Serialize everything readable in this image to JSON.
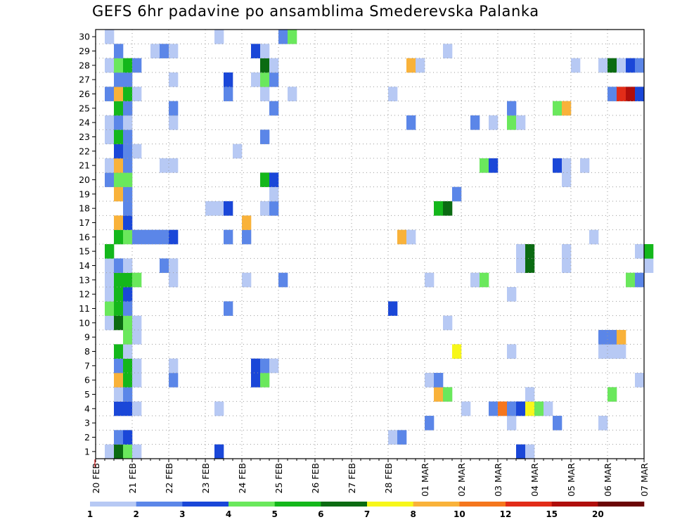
{
  "chart_data": {
    "type": "heatmap",
    "title": "GEFS 6hr padavine po ansamblima Smederevska Palanka",
    "xlabel": "",
    "ylabel": "",
    "x_tick_labels": [
      "20 FEB",
      "21 FEB",
      "22 FEB",
      "23 FEB",
      "24 FEB",
      "25 FEB",
      "26 FEB",
      "27 FEB",
      "28 FEB",
      "01 MAR",
      "02 MAR",
      "03 MAR",
      "04 MAR",
      "05 MAR",
      "06 MAR",
      "07 MAR"
    ],
    "x_range_steps": [
      0,
      60
    ],
    "y_tick_labels": [
      "1",
      "2",
      "3",
      "4",
      "5",
      "6",
      "7",
      "8",
      "9",
      "10",
      "11",
      "12",
      "13",
      "14",
      "15",
      "16",
      "17",
      "18",
      "19",
      "20",
      "21",
      "22",
      "23",
      "24",
      "25",
      "26",
      "27",
      "28",
      "29",
      "30"
    ],
    "y_range": [
      0.5,
      30.5
    ],
    "grid": true,
    "colorbar": {
      "labels": [
        "1",
        "2",
        "3",
        "4",
        "5",
        "6",
        "7",
        "8",
        "10",
        "12",
        "15",
        "20"
      ],
      "colors": [
        "#b7c9f4",
        "#5b86e8",
        "#1a47d8",
        "#6ae85c",
        "#14b71b",
        "#0b6b12",
        "#f7f71a",
        "#f9b23a",
        "#f5761d",
        "#e22c18",
        "#b00e0b",
        "#6b0606"
      ]
    },
    "cells": [
      {
        "member": 1,
        "step": 1,
        "cls": 0
      },
      {
        "member": 1,
        "step": 2,
        "cls": 5
      },
      {
        "member": 1,
        "step": 3,
        "cls": 3
      },
      {
        "member": 1,
        "step": 4,
        "cls": 0
      },
      {
        "member": 1,
        "step": 13,
        "cls": 2
      },
      {
        "member": 1,
        "step": 46,
        "cls": 2
      },
      {
        "member": 1,
        "step": 47,
        "cls": 0
      },
      {
        "member": 2,
        "step": 2,
        "cls": 1
      },
      {
        "member": 2,
        "step": 3,
        "cls": 2
      },
      {
        "member": 2,
        "step": 32,
        "cls": 0
      },
      {
        "member": 2,
        "step": 33,
        "cls": 1
      },
      {
        "member": 3,
        "step": 36,
        "cls": 1
      },
      {
        "member": 3,
        "step": 45,
        "cls": 0
      },
      {
        "member": 3,
        "step": 50,
        "cls": 1
      },
      {
        "member": 3,
        "step": 55,
        "cls": 0
      },
      {
        "member": 4,
        "step": 2,
        "cls": 2
      },
      {
        "member": 4,
        "step": 3,
        "cls": 2
      },
      {
        "member": 4,
        "step": 4,
        "cls": 0
      },
      {
        "member": 4,
        "step": 13,
        "cls": 0
      },
      {
        "member": 4,
        "step": 40,
        "cls": 0
      },
      {
        "member": 4,
        "step": 43,
        "cls": 1
      },
      {
        "member": 4,
        "step": 44,
        "cls": 8
      },
      {
        "member": 4,
        "step": 45,
        "cls": 1
      },
      {
        "member": 4,
        "step": 46,
        "cls": 2
      },
      {
        "member": 4,
        "step": 47,
        "cls": 6
      },
      {
        "member": 4,
        "step": 48,
        "cls": 3
      },
      {
        "member": 4,
        "step": 49,
        "cls": 0
      },
      {
        "member": 5,
        "step": 2,
        "cls": 0
      },
      {
        "member": 5,
        "step": 3,
        "cls": 1
      },
      {
        "member": 5,
        "step": 37,
        "cls": 7
      },
      {
        "member": 5,
        "step": 38,
        "cls": 3
      },
      {
        "member": 5,
        "step": 47,
        "cls": 0
      },
      {
        "member": 5,
        "step": 56,
        "cls": 3
      },
      {
        "member": 6,
        "step": 2,
        "cls": 7
      },
      {
        "member": 6,
        "step": 3,
        "cls": 4
      },
      {
        "member": 6,
        "step": 4,
        "cls": 0
      },
      {
        "member": 6,
        "step": 8,
        "cls": 1
      },
      {
        "member": 6,
        "step": 17,
        "cls": 2
      },
      {
        "member": 6,
        "step": 18,
        "cls": 3
      },
      {
        "member": 6,
        "step": 36,
        "cls": 0
      },
      {
        "member": 6,
        "step": 37,
        "cls": 1
      },
      {
        "member": 6,
        "step": 59,
        "cls": 0
      },
      {
        "member": 7,
        "step": 2,
        "cls": 1
      },
      {
        "member": 7,
        "step": 3,
        "cls": 4
      },
      {
        "member": 7,
        "step": 4,
        "cls": 0
      },
      {
        "member": 7,
        "step": 8,
        "cls": 0
      },
      {
        "member": 7,
        "step": 17,
        "cls": 2
      },
      {
        "member": 7,
        "step": 18,
        "cls": 1
      },
      {
        "member": 7,
        "step": 19,
        "cls": 0
      },
      {
        "member": 8,
        "step": 2,
        "cls": 4
      },
      {
        "member": 8,
        "step": 3,
        "cls": 0
      },
      {
        "member": 8,
        "step": 39,
        "cls": 6
      },
      {
        "member": 8,
        "step": 45,
        "cls": 0
      },
      {
        "member": 8,
        "step": 55,
        "cls": 0
      },
      {
        "member": 8,
        "step": 56,
        "cls": 0
      },
      {
        "member": 8,
        "step": 57,
        "cls": 0
      },
      {
        "member": 9,
        "step": 3,
        "cls": 3
      },
      {
        "member": 9,
        "step": 4,
        "cls": 0
      },
      {
        "member": 9,
        "step": 55,
        "cls": 1
      },
      {
        "member": 9,
        "step": 56,
        "cls": 1
      },
      {
        "member": 9,
        "step": 57,
        "cls": 7
      },
      {
        "member": 10,
        "step": 1,
        "cls": 0
      },
      {
        "member": 10,
        "step": 2,
        "cls": 5
      },
      {
        "member": 10,
        "step": 3,
        "cls": 3
      },
      {
        "member": 10,
        "step": 4,
        "cls": 0
      },
      {
        "member": 10,
        "step": 38,
        "cls": 0
      },
      {
        "member": 11,
        "step": 1,
        "cls": 3
      },
      {
        "member": 11,
        "step": 2,
        "cls": 4
      },
      {
        "member": 11,
        "step": 3,
        "cls": 1
      },
      {
        "member": 11,
        "step": 14,
        "cls": 1
      },
      {
        "member": 11,
        "step": 32,
        "cls": 2
      },
      {
        "member": 12,
        "step": 1,
        "cls": 0
      },
      {
        "member": 12,
        "step": 2,
        "cls": 4
      },
      {
        "member": 12,
        "step": 3,
        "cls": 2
      },
      {
        "member": 12,
        "step": 45,
        "cls": 0
      },
      {
        "member": 13,
        "step": 1,
        "cls": 0
      },
      {
        "member": 13,
        "step": 2,
        "cls": 4
      },
      {
        "member": 13,
        "step": 3,
        "cls": 4
      },
      {
        "member": 13,
        "step": 4,
        "cls": 3
      },
      {
        "member": 13,
        "step": 8,
        "cls": 0
      },
      {
        "member": 13,
        "step": 16,
        "cls": 0
      },
      {
        "member": 13,
        "step": 20,
        "cls": 1
      },
      {
        "member": 13,
        "step": 36,
        "cls": 0
      },
      {
        "member": 13,
        "step": 41,
        "cls": 0
      },
      {
        "member": 13,
        "step": 42,
        "cls": 3
      },
      {
        "member": 13,
        "step": 58,
        "cls": 3
      },
      {
        "member": 13,
        "step": 59,
        "cls": 1
      },
      {
        "member": 14,
        "step": 1,
        "cls": 0
      },
      {
        "member": 14,
        "step": 2,
        "cls": 1
      },
      {
        "member": 14,
        "step": 3,
        "cls": 0
      },
      {
        "member": 14,
        "step": 7,
        "cls": 1
      },
      {
        "member": 14,
        "step": 8,
        "cls": 0
      },
      {
        "member": 14,
        "step": 46,
        "cls": 0
      },
      {
        "member": 14,
        "step": 47,
        "cls": 5
      },
      {
        "member": 14,
        "step": 51,
        "cls": 0
      },
      {
        "member": 14,
        "step": 60,
        "cls": 0
      },
      {
        "member": 15,
        "step": 1,
        "cls": 4
      },
      {
        "member": 15,
        "step": 46,
        "cls": 0
      },
      {
        "member": 15,
        "step": 47,
        "cls": 5
      },
      {
        "member": 15,
        "step": 51,
        "cls": 0
      },
      {
        "member": 15,
        "step": 59,
        "cls": 0
      },
      {
        "member": 15,
        "step": 60,
        "cls": 4
      },
      {
        "member": 16,
        "step": 2,
        "cls": 4
      },
      {
        "member": 16,
        "step": 3,
        "cls": 3
      },
      {
        "member": 16,
        "step": 4,
        "cls": 1
      },
      {
        "member": 16,
        "step": 5,
        "cls": 1
      },
      {
        "member": 16,
        "step": 6,
        "cls": 1
      },
      {
        "member": 16,
        "step": 7,
        "cls": 1
      },
      {
        "member": 16,
        "step": 8,
        "cls": 2
      },
      {
        "member": 16,
        "step": 14,
        "cls": 1
      },
      {
        "member": 16,
        "step": 16,
        "cls": 1
      },
      {
        "member": 16,
        "step": 33,
        "cls": 7
      },
      {
        "member": 16,
        "step": 34,
        "cls": 0
      },
      {
        "member": 16,
        "step": 54,
        "cls": 0
      },
      {
        "member": 17,
        "step": 2,
        "cls": 7
      },
      {
        "member": 17,
        "step": 3,
        "cls": 2
      },
      {
        "member": 17,
        "step": 16,
        "cls": 7
      },
      {
        "member": 18,
        "step": 3,
        "cls": 1
      },
      {
        "member": 18,
        "step": 12,
        "cls": 0
      },
      {
        "member": 18,
        "step": 13,
        "cls": 0
      },
      {
        "member": 18,
        "step": 14,
        "cls": 2
      },
      {
        "member": 18,
        "step": 18,
        "cls": 0
      },
      {
        "member": 18,
        "step": 19,
        "cls": 1
      },
      {
        "member": 18,
        "step": 37,
        "cls": 4
      },
      {
        "member": 18,
        "step": 38,
        "cls": 5
      },
      {
        "member": 19,
        "step": 2,
        "cls": 7
      },
      {
        "member": 19,
        "step": 3,
        "cls": 1
      },
      {
        "member": 19,
        "step": 19,
        "cls": 0
      },
      {
        "member": 19,
        "step": 39,
        "cls": 1
      },
      {
        "member": 20,
        "step": 1,
        "cls": 1
      },
      {
        "member": 20,
        "step": 2,
        "cls": 3
      },
      {
        "member": 20,
        "step": 3,
        "cls": 3
      },
      {
        "member": 20,
        "step": 18,
        "cls": 4
      },
      {
        "member": 20,
        "step": 19,
        "cls": 2
      },
      {
        "member": 20,
        "step": 51,
        "cls": 0
      },
      {
        "member": 21,
        "step": 1,
        "cls": 0
      },
      {
        "member": 21,
        "step": 2,
        "cls": 7
      },
      {
        "member": 21,
        "step": 3,
        "cls": 1
      },
      {
        "member": 21,
        "step": 7,
        "cls": 0
      },
      {
        "member": 21,
        "step": 8,
        "cls": 0
      },
      {
        "member": 21,
        "step": 42,
        "cls": 3
      },
      {
        "member": 21,
        "step": 43,
        "cls": 2
      },
      {
        "member": 21,
        "step": 50,
        "cls": 2
      },
      {
        "member": 21,
        "step": 51,
        "cls": 0
      },
      {
        "member": 21,
        "step": 53,
        "cls": 0
      },
      {
        "member": 22,
        "step": 2,
        "cls": 2
      },
      {
        "member": 22,
        "step": 3,
        "cls": 1
      },
      {
        "member": 22,
        "step": 4,
        "cls": 0
      },
      {
        "member": 22,
        "step": 15,
        "cls": 0
      },
      {
        "member": 23,
        "step": 1,
        "cls": 0
      },
      {
        "member": 23,
        "step": 2,
        "cls": 4
      },
      {
        "member": 23,
        "step": 3,
        "cls": 1
      },
      {
        "member": 23,
        "step": 18,
        "cls": 1
      },
      {
        "member": 24,
        "step": 1,
        "cls": 0
      },
      {
        "member": 24,
        "step": 2,
        "cls": 1
      },
      {
        "member": 24,
        "step": 3,
        "cls": 0
      },
      {
        "member": 24,
        "step": 8,
        "cls": 0
      },
      {
        "member": 24,
        "step": 34,
        "cls": 1
      },
      {
        "member": 24,
        "step": 41,
        "cls": 1
      },
      {
        "member": 24,
        "step": 43,
        "cls": 0
      },
      {
        "member": 24,
        "step": 45,
        "cls": 3
      },
      {
        "member": 24,
        "step": 46,
        "cls": 0
      },
      {
        "member": 25,
        "step": 2,
        "cls": 4
      },
      {
        "member": 25,
        "step": 3,
        "cls": 1
      },
      {
        "member": 25,
        "step": 8,
        "cls": 1
      },
      {
        "member": 25,
        "step": 19,
        "cls": 1
      },
      {
        "member": 25,
        "step": 45,
        "cls": 1
      },
      {
        "member": 25,
        "step": 50,
        "cls": 3
      },
      {
        "member": 25,
        "step": 51,
        "cls": 7
      },
      {
        "member": 26,
        "step": 1,
        "cls": 1
      },
      {
        "member": 26,
        "step": 2,
        "cls": 7
      },
      {
        "member": 26,
        "step": 3,
        "cls": 4
      },
      {
        "member": 26,
        "step": 4,
        "cls": 0
      },
      {
        "member": 26,
        "step": 14,
        "cls": 1
      },
      {
        "member": 26,
        "step": 18,
        "cls": 0
      },
      {
        "member": 26,
        "step": 21,
        "cls": 0
      },
      {
        "member": 26,
        "step": 32,
        "cls": 0
      },
      {
        "member": 26,
        "step": 56,
        "cls": 1
      },
      {
        "member": 26,
        "step": 57,
        "cls": 9
      },
      {
        "member": 26,
        "step": 58,
        "cls": 10
      },
      {
        "member": 26,
        "step": 59,
        "cls": 2
      },
      {
        "member": 27,
        "step": 2,
        "cls": 1
      },
      {
        "member": 27,
        "step": 3,
        "cls": 1
      },
      {
        "member": 27,
        "step": 8,
        "cls": 0
      },
      {
        "member": 27,
        "step": 14,
        "cls": 2
      },
      {
        "member": 27,
        "step": 17,
        "cls": 0
      },
      {
        "member": 27,
        "step": 18,
        "cls": 3
      },
      {
        "member": 27,
        "step": 19,
        "cls": 1
      },
      {
        "member": 28,
        "step": 1,
        "cls": 0
      },
      {
        "member": 28,
        "step": 2,
        "cls": 3
      },
      {
        "member": 28,
        "step": 3,
        "cls": 4
      },
      {
        "member": 28,
        "step": 4,
        "cls": 1
      },
      {
        "member": 28,
        "step": 18,
        "cls": 5
      },
      {
        "member": 28,
        "step": 19,
        "cls": 0
      },
      {
        "member": 28,
        "step": 34,
        "cls": 7
      },
      {
        "member": 28,
        "step": 35,
        "cls": 0
      },
      {
        "member": 28,
        "step": 52,
        "cls": 0
      },
      {
        "member": 28,
        "step": 55,
        "cls": 0
      },
      {
        "member": 28,
        "step": 56,
        "cls": 5
      },
      {
        "member": 28,
        "step": 57,
        "cls": 0
      },
      {
        "member": 28,
        "step": 58,
        "cls": 2
      },
      {
        "member": 28,
        "step": 59,
        "cls": 1
      },
      {
        "member": 29,
        "step": 2,
        "cls": 1
      },
      {
        "member": 29,
        "step": 6,
        "cls": 0
      },
      {
        "member": 29,
        "step": 7,
        "cls": 1
      },
      {
        "member": 29,
        "step": 8,
        "cls": 0
      },
      {
        "member": 29,
        "step": 17,
        "cls": 2
      },
      {
        "member": 29,
        "step": 18,
        "cls": 0
      },
      {
        "member": 29,
        "step": 38,
        "cls": 0
      },
      {
        "member": 30,
        "step": 1,
        "cls": 0
      },
      {
        "member": 30,
        "step": 13,
        "cls": 0
      },
      {
        "member": 30,
        "step": 20,
        "cls": 1
      },
      {
        "member": 30,
        "step": 21,
        "cls": 3
      }
    ]
  }
}
